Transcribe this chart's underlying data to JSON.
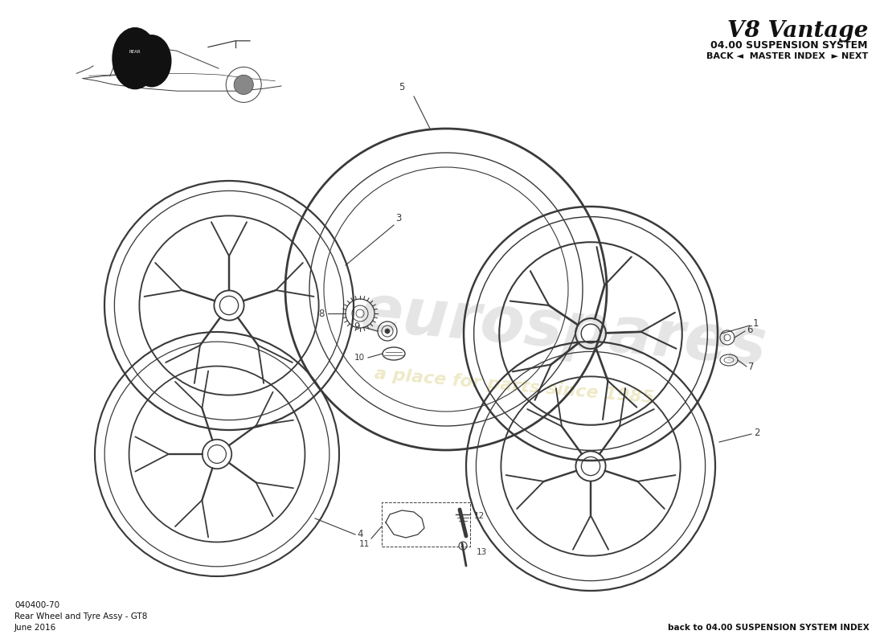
{
  "title": "V8 Vantage",
  "subtitle": "04.00 SUSPENSION SYSTEM",
  "nav": "BACK ◄  MASTER INDEX  ► NEXT",
  "part_number": "040400-70",
  "part_name": "Rear Wheel and Tyre Assy - GT8",
  "date": "June 2016",
  "back_link": "back to 04.00 SUSPENSION SYSTEM INDEX",
  "bg_color": "#ffffff",
  "line_color": "#3a3a3a",
  "wm_color1": "#cccccc",
  "wm_color2": "#e8e0b0",
  "title_fontsize": 20,
  "subtitle_fontsize": 9,
  "nav_fontsize": 8,
  "footer_fontsize": 7.5,
  "label_fontsize": 8.5
}
